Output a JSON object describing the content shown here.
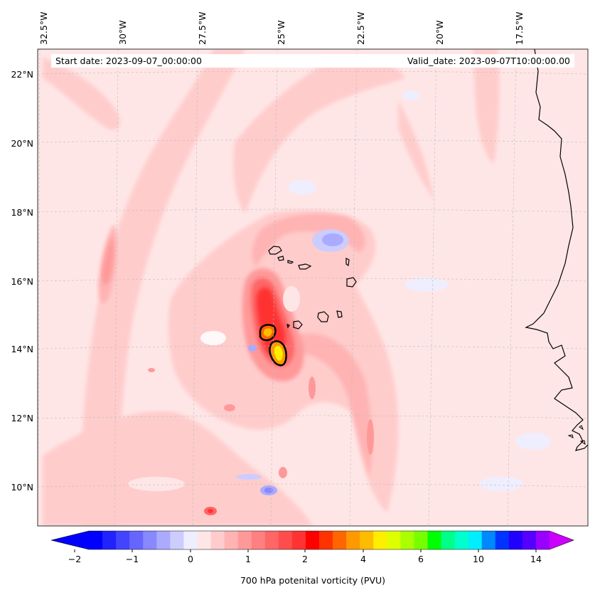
{
  "header": {
    "start_date": "Start date: 2023-09-07_00:00:00",
    "valid_date": "Valid_date: 2023-09-07T10:00:00.00"
  },
  "map": {
    "field": "700 hPa potential vorticity",
    "lon_labels": [
      "32.5°W",
      "30°W",
      "27.5°W",
      "25°W",
      "22.5°W",
      "20°W",
      "17.5°W"
    ],
    "lat_labels": [
      "22°N",
      "20°N",
      "18°N",
      "16°N",
      "14°N",
      "12°N",
      "10°N"
    ],
    "highlight_center": [
      "25.2°W",
      "14.1°N"
    ]
  },
  "colorbar": {
    "title": "700 hPa potenital vorticity (PVU)",
    "tick_labels": [
      "−2",
      "−1",
      "0",
      "1",
      "2",
      "4",
      "6",
      "10",
      "14"
    ],
    "colors": [
      "#0000ff",
      "#2222ff",
      "#4444ff",
      "#6666ff",
      "#8888ff",
      "#aaaaff",
      "#ccccff",
      "#eeeeff",
      "#ffe6e6",
      "#ffcccc",
      "#ffb3b3",
      "#ff9999",
      "#ff8080",
      "#ff6666",
      "#ff4d4d",
      "#ff3333",
      "#ff0000",
      "#ff3300",
      "#ff6600",
      "#ff9900",
      "#ffbb00",
      "#ffee00",
      "#ddff00",
      "#aaff00",
      "#77ff00",
      "#00ff00",
      "#00ff88",
      "#00ffcc",
      "#00eeff",
      "#0088ff",
      "#0033ff",
      "#2200ff",
      "#5500ff",
      "#9900ff"
    ],
    "under_color": "#0000ff",
    "over_color": "#cc00ff"
  }
}
